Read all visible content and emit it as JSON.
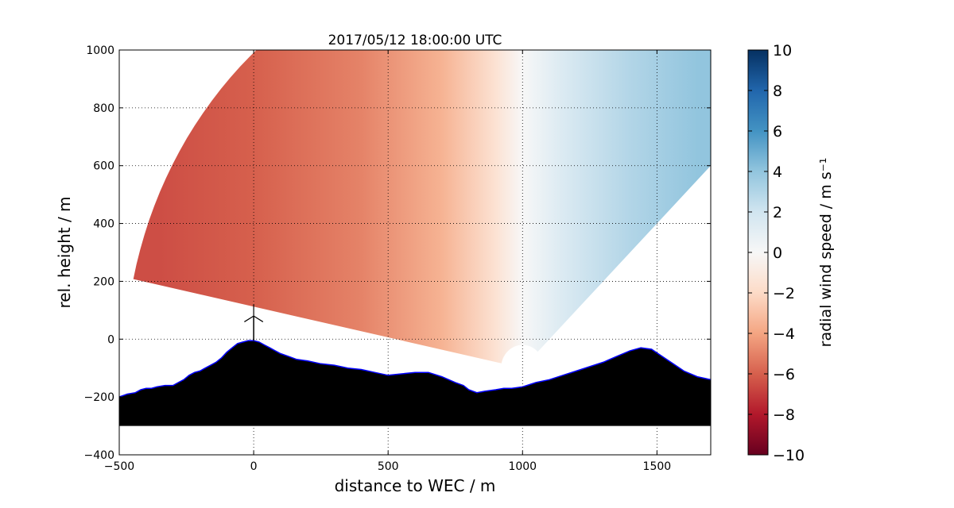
{
  "chart_data": {
    "type": "heatmap",
    "title": "2017/05/12 18:00:00 UTC",
    "xlabel": "distance to WEC / m",
    "ylabel": "rel. height / m",
    "xlim": [
      -500,
      1700
    ],
    "ylim": [
      -400,
      1000
    ],
    "xticks": [
      -500,
      0,
      500,
      1000,
      1500
    ],
    "yticks": [
      -400,
      -200,
      0,
      200,
      400,
      600,
      800,
      1000
    ],
    "grid": true,
    "grid_style": "dotted",
    "scan": {
      "origin": [
        1000,
        -100
      ],
      "radius_min": 80,
      "radius_max": 1480,
      "angle_min_deg": 45,
      "angle_max_deg": 168,
      "field_samples": [
        {
          "x": -350,
          "value": -6.5
        },
        {
          "x": 0,
          "value": -6.0
        },
        {
          "x": 400,
          "value": -5.0
        },
        {
          "x": 700,
          "value": -3.5
        },
        {
          "x": 900,
          "value": -1.5
        },
        {
          "x": 1000,
          "value": 0.0
        },
        {
          "x": 1150,
          "value": 1.5
        },
        {
          "x": 1400,
          "value": 3.0
        },
        {
          "x": 1650,
          "value": 4.0
        }
      ]
    },
    "terrain_profile": {
      "color": "#000000",
      "edge_color": "#0000ff",
      "base": -300,
      "x": [
        -500,
        -470,
        -440,
        -420,
        -400,
        -380,
        -360,
        -330,
        -300,
        -280,
        -260,
        -240,
        -220,
        -200,
        -180,
        -160,
        -140,
        -120,
        -100,
        -80,
        -60,
        -40,
        -20,
        0,
        20,
        40,
        60,
        80,
        100,
        130,
        160,
        200,
        250,
        300,
        350,
        400,
        450,
        500,
        550,
        600,
        650,
        700,
        750,
        780,
        800,
        830,
        860,
        900,
        930,
        960,
        1000,
        1050,
        1100,
        1150,
        1200,
        1250,
        1300,
        1350,
        1400,
        1440,
        1480,
        1520,
        1560,
        1600,
        1650,
        1700
      ],
      "y": [
        -200,
        -190,
        -185,
        -175,
        -170,
        -170,
        -165,
        -160,
        -160,
        -150,
        -140,
        -125,
        -115,
        -110,
        -100,
        -90,
        -80,
        -65,
        -45,
        -30,
        -15,
        -10,
        -5,
        -5,
        -10,
        -20,
        -30,
        -40,
        -50,
        -60,
        -70,
        -75,
        -85,
        -90,
        -100,
        -105,
        -115,
        -125,
        -120,
        -115,
        -115,
        -130,
        -150,
        -160,
        -175,
        -185,
        -180,
        -175,
        -170,
        -170,
        -165,
        -150,
        -140,
        -125,
        -110,
        -95,
        -80,
        -60,
        -40,
        -30,
        -35,
        -60,
        -85,
        -110,
        -130,
        -140
      ]
    },
    "wec": {
      "x": 0,
      "hub_height": 80,
      "rotor_radius": 40
    }
  },
  "colorbar": {
    "label": "radial wind speed / m s⁻¹",
    "ticks": [
      "10",
      "8",
      "6",
      "4",
      "2",
      "0",
      "−2",
      "−4",
      "−6",
      "−8",
      "−10"
    ],
    "range": [
      -10,
      10
    ],
    "stops": [
      {
        "value": -10,
        "color": "#67001f"
      },
      {
        "value": -8,
        "color": "#b2182b"
      },
      {
        "value": -6,
        "color": "#d6604d"
      },
      {
        "value": -4,
        "color": "#f4a582"
      },
      {
        "value": -2,
        "color": "#fddbc7"
      },
      {
        "value": 0,
        "color": "#f7f7f7"
      },
      {
        "value": 2,
        "color": "#d1e5f0"
      },
      {
        "value": 4,
        "color": "#92c5de"
      },
      {
        "value": 6,
        "color": "#4393c3"
      },
      {
        "value": 8,
        "color": "#2166ac"
      },
      {
        "value": 10,
        "color": "#053061"
      }
    ]
  },
  "tick_labels": {
    "x": [
      "−500",
      "0",
      "500",
      "1000",
      "1500"
    ],
    "y": [
      "−400",
      "−200",
      "0",
      "200",
      "400",
      "600",
      "800",
      "1000"
    ]
  }
}
